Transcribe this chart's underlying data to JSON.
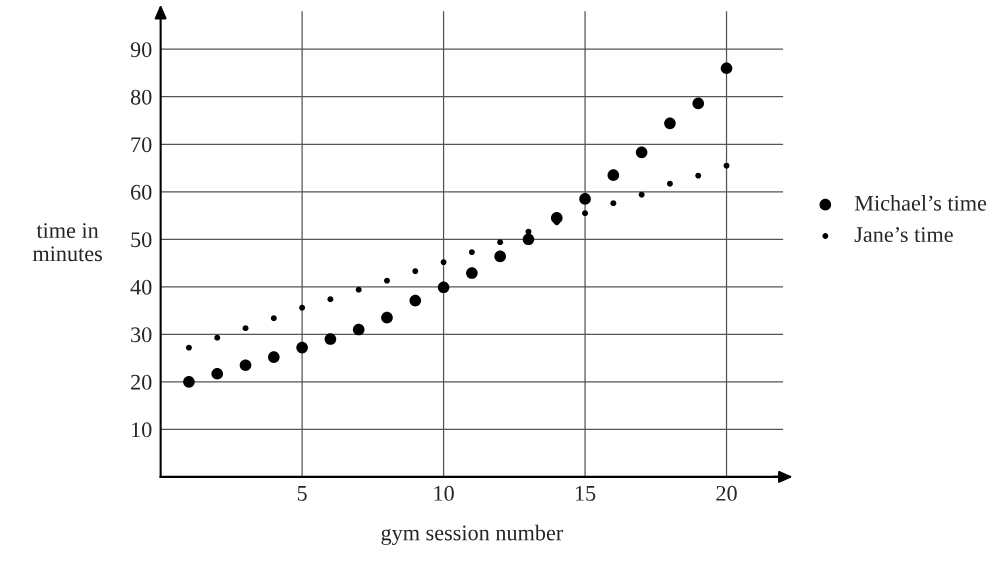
{
  "chart_data": {
    "type": "scatter",
    "xlabel": "gym session number",
    "ylabel": "time in\nminutes",
    "x": [
      1,
      2,
      3,
      4,
      5,
      6,
      7,
      8,
      9,
      10,
      11,
      12,
      13,
      14,
      15,
      16,
      17,
      18,
      19,
      20
    ],
    "series": [
      {
        "name": "Michael’s time",
        "color": "#000000",
        "values": [
          20,
          21.7,
          23.5,
          25.2,
          27.2,
          29,
          31,
          33.5,
          37.1,
          39.9,
          42.9,
          46.4,
          50,
          54.5,
          58.5,
          63.5,
          68.3,
          74.4,
          78.6,
          86
        ]
      },
      {
        "name": "Jane’s time",
        "color": "#000000",
        "values": [
          27.2,
          29.3,
          31.3,
          33.4,
          35.6,
          37.4,
          39.4,
          41.3,
          43.3,
          45.2,
          47.3,
          49.4,
          51.6,
          53.6,
          55.5,
          57.6,
          59.4,
          61.7,
          63.4,
          65.5
        ]
      }
    ],
    "xlim": [
      0,
      22
    ],
    "ylim": [
      0,
      98
    ],
    "xticks": [
      5,
      10,
      15,
      20
    ],
    "yticks": [
      10,
      20,
      30,
      40,
      50,
      60,
      70,
      80,
      90
    ],
    "grid": true,
    "marker": "circle",
    "legend": "right"
  }
}
